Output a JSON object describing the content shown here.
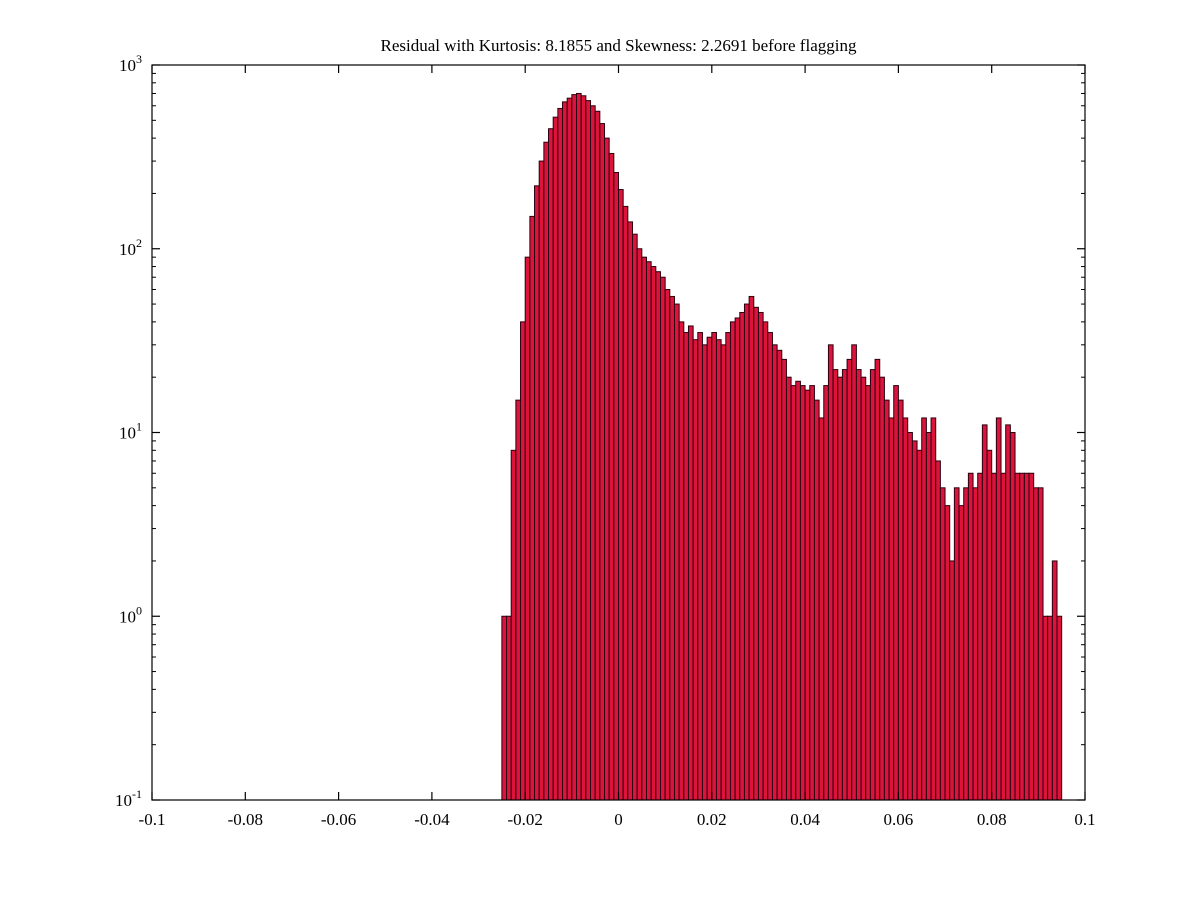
{
  "chart_data": {
    "type": "bar",
    "title": "Residual with Kurtosis: 8.1855 and Skewness: 2.2691 before flagging",
    "xlabel": "",
    "ylabel": "",
    "x_start": -0.025,
    "bin_width": 0.001,
    "counts": [
      1,
      1,
      8,
      15,
      40,
      90,
      150,
      220,
      300,
      380,
      450,
      520,
      580,
      630,
      660,
      690,
      700,
      680,
      640,
      600,
      560,
      480,
      400,
      330,
      260,
      210,
      170,
      140,
      120,
      100,
      90,
      85,
      80,
      75,
      70,
      60,
      55,
      50,
      40,
      35,
      38,
      32,
      35,
      30,
      33,
      35,
      32,
      30,
      35,
      40,
      42,
      45,
      50,
      55,
      48,
      45,
      40,
      35,
      30,
      28,
      25,
      20,
      18,
      19,
      18,
      17,
      18,
      15,
      12,
      18,
      30,
      22,
      20,
      22,
      25,
      30,
      22,
      20,
      18,
      22,
      25,
      20,
      15,
      12,
      18,
      15,
      12,
      10,
      9,
      8,
      12,
      10,
      12,
      7,
      5,
      4,
      2,
      5,
      4,
      5,
      6,
      5,
      6,
      11,
      8,
      6,
      12,
      6,
      11,
      10,
      6,
      6,
      6,
      6,
      5,
      5,
      1,
      1,
      2,
      1
    ],
    "xlim": [
      -0.1,
      0.1
    ],
    "ylog_lim": [
      -1,
      3
    ],
    "x_ticks": [
      -0.1,
      -0.08,
      -0.06,
      -0.04,
      -0.02,
      0,
      0.02,
      0.04,
      0.06,
      0.08,
      0.1
    ],
    "x_tick_labels": [
      "-0.1",
      "-0.08",
      "-0.06",
      "-0.04",
      "-0.02",
      "0",
      "0.02",
      "0.04",
      "0.06",
      "0.08",
      "0.1"
    ],
    "y_tick_exponents": [
      -1,
      0,
      1,
      2,
      3
    ],
    "y_tick_base": "10",
    "grid": false,
    "legend": "none",
    "colors": {
      "bar_fill": "#dc143c",
      "bar_edge": "#2a0010",
      "axis": "#000000",
      "background": "#ffffff"
    }
  }
}
